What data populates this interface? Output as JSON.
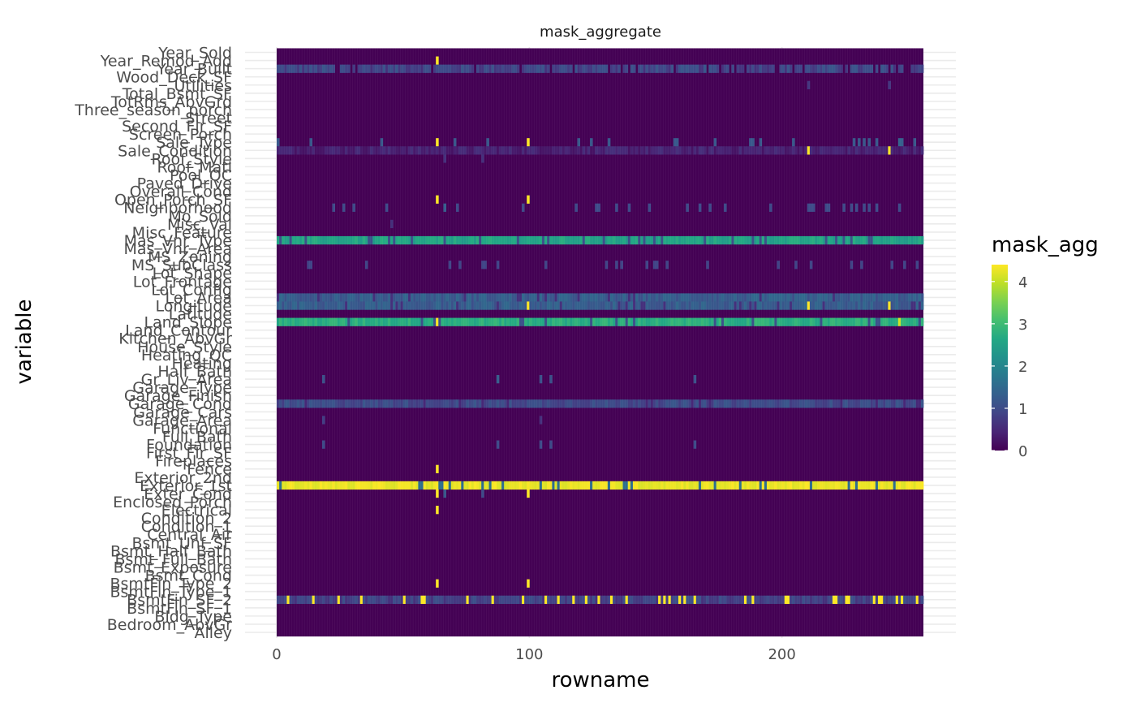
{
  "chart_data": {
    "type": "heatmap",
    "title": "mask_aggregate",
    "xlabel": "rowname",
    "ylabel": "variable",
    "x_range": [
      0,
      256
    ],
    "x_ticks": [
      0,
      100,
      200
    ],
    "x_tick_labels": [
      "0",
      "100",
      "200"
    ],
    "grid": true,
    "legend": {
      "title": "mask_agg",
      "placement": "right",
      "ticks": [
        0,
        1,
        2,
        3,
        4
      ],
      "tick_labels": [
        "0",
        "1",
        "2",
        "3",
        "4"
      ],
      "range": [
        0,
        4.4
      ],
      "colormap": "viridis"
    },
    "variables": [
      "Year_Sold",
      "Year_Remod_Add",
      "Year_Built",
      "Wood_Deck_SF",
      "Utilities",
      "Total_Bsmt_SF",
      "TotRms_AbvGrd",
      "Three_season_porch",
      "Street",
      "Second_Flr_SF",
      "Screen_Porch",
      "Sale_Type",
      "Sale_Condition",
      "Roof_Style",
      "Roof_Matl",
      "Pool_QC",
      "Paved_Drive",
      "Overall_Cond",
      "Open_Porch_SF",
      "Neighborhood",
      "Mo_Sold",
      "Misc_Val",
      "Misc_Feature",
      "Mas_Vnr_Type",
      "Mas_Vnr_Area",
      "MS_Zoning",
      "MS_SubClass",
      "Lot_Shape",
      "Lot_Frontage",
      "Lot_Config",
      "Lot_Area",
      "Longitude",
      "Latitude",
      "Land_Slope",
      "Land_Contour",
      "Kitchen_AbvGr",
      "House_Style",
      "Heating_QC",
      "Heating",
      "Half_Bath",
      "Gr_Liv_Area",
      "Garage_Type",
      "Garage_Finish",
      "Garage_Cond",
      "Garage_Cars",
      "Garage_Area",
      "Functional",
      "Full_Bath",
      "Foundation",
      "First_Flr_SF",
      "Fireplaces",
      "Fence",
      "Exterior_2nd",
      "Exterior_1st",
      "Exter_Cond",
      "Enclosed_Porch",
      "Electrical",
      "Condition_2",
      "Condition_1",
      "Central_Air",
      "Bsmt_Unf_SF",
      "Bsmt_Half_Bath",
      "Bsmt_Full_Bath",
      "Bsmt_Exposure",
      "Bsmt_Cond",
      "BsmtFin_Type_2",
      "BsmtFin_Type_1",
      "BsmtFin_SF_2",
      "BsmtFin_SF_1",
      "Bldg_Type",
      "Bedroom_AbvGr",
      "Alley"
    ],
    "rows": 256,
    "default_value": 0,
    "row_profiles": [
      {
        "variable": "Year_Remod_Add",
        "cells": [
          [
            63,
            4.4
          ]
        ]
      },
      {
        "variable": "Year_Built",
        "base": 0.9,
        "jitter": [
          0.6,
          1.2
        ],
        "speckle_dark": 0.12
      },
      {
        "variable": "Utilities",
        "cells": [
          [
            210,
            0.7
          ],
          [
            242,
            0.7
          ]
        ]
      },
      {
        "variable": "Sale_Type",
        "base": 0.0,
        "speckle": 0.1,
        "speckle_value": 1.2,
        "cells": [
          [
            63,
            4.4
          ],
          [
            99,
            4.4
          ],
          [
            246,
            1.4
          ],
          [
            247,
            1.3
          ]
        ]
      },
      {
        "variable": "Sale_Condition",
        "base": 0.35,
        "jitter": [
          0.2,
          0.6
        ],
        "cells": [
          [
            210,
            4.4
          ],
          [
            242,
            4.4
          ]
        ]
      },
      {
        "variable": "Roof_Style",
        "cells": [
          [
            66,
            0.6
          ],
          [
            81,
            0.6
          ]
        ]
      },
      {
        "variable": "Open_Porch_SF",
        "cells": [
          [
            63,
            4.4
          ],
          [
            99,
            4.4
          ]
        ]
      },
      {
        "variable": "Neighborhood",
        "base": 0.0,
        "speckle": 0.08,
        "speckle_value": 1.0,
        "cells": [
          [
            66,
            1.3
          ]
        ]
      },
      {
        "variable": "Misc_Val",
        "cells": [
          [
            45,
            0.6
          ]
        ]
      },
      {
        "variable": "Mas_Vnr_Type",
        "base": 2.55,
        "jitter": [
          2.35,
          2.75
        ],
        "speckle_dark": 0.1,
        "dark_value": 1.1
      },
      {
        "variable": "MS_SubClass",
        "base": 0.0,
        "speckle": 0.1,
        "speckle_value": 0.9
      },
      {
        "variable": "Lot_Area",
        "base": 1.3,
        "jitter": [
          1.05,
          1.5
        ],
        "speckle_dark": 0.08,
        "dark_value": 0.6
      },
      {
        "variable": "Longitude",
        "base": 1.3,
        "jitter": [
          1.05,
          1.5
        ],
        "speckle_dark": 0.08,
        "dark_value": 0.6,
        "cells": [
          [
            99,
            4.4
          ],
          [
            210,
            4.4
          ],
          [
            242,
            4.4
          ]
        ]
      },
      {
        "variable": "Land_Slope",
        "base": 2.75,
        "jitter": [
          2.55,
          2.95
        ],
        "speckle_dark": 0.1,
        "dark_value": 1.1,
        "cells": [
          [
            63,
            4.4
          ],
          [
            246,
            4.1
          ]
        ]
      },
      {
        "variable": "Gr_Liv_Area",
        "cells": [
          [
            18,
            1.1
          ],
          [
            87,
            1.3
          ],
          [
            104,
            1.1
          ],
          [
            108,
            1.1
          ],
          [
            165,
            1.1
          ]
        ]
      },
      {
        "variable": "Garage_Cond",
        "base": 0.95,
        "jitter": [
          0.75,
          1.2
        ],
        "speckle_dark": 0.05,
        "dark_value": 0.5
      },
      {
        "variable": "Garage_Area",
        "cells": [
          [
            18,
            0.8
          ],
          [
            104,
            0.6
          ]
        ]
      },
      {
        "variable": "Foundation",
        "cells": [
          [
            18,
            1.0
          ],
          [
            87,
            1.0
          ],
          [
            104,
            1.0
          ],
          [
            108,
            1.0
          ],
          [
            165,
            1.0
          ]
        ]
      },
      {
        "variable": "Fence",
        "cells": [
          [
            63,
            4.4
          ]
        ]
      },
      {
        "variable": "Exterior_1st",
        "base": 4.3,
        "jitter": [
          4.15,
          4.4
        ],
        "speckle_dark": 0.1,
        "dark_value": 1.6
      },
      {
        "variable": "Exter_Cond",
        "cells": [
          [
            63,
            4.4
          ],
          [
            66,
            1.2
          ],
          [
            81,
            1.0
          ],
          [
            99,
            4.4
          ]
        ]
      },
      {
        "variable": "Electrical",
        "cells": [
          [
            63,
            4.4
          ]
        ]
      },
      {
        "variable": "BsmtFin_Type_2",
        "cells": [
          [
            63,
            4.4
          ],
          [
            99,
            4.4
          ]
        ]
      },
      {
        "variable": "BsmtFin_SF_2",
        "base": 0.8,
        "jitter": [
          0.6,
          1.1
        ],
        "bright_cells": [
          4,
          14,
          24,
          33,
          50,
          57,
          58,
          75,
          85,
          97,
          106,
          111,
          117,
          122,
          127,
          132,
          138,
          151,
          153,
          155,
          159,
          161,
          165,
          185,
          188,
          201,
          202,
          220,
          221,
          225,
          226,
          236,
          238,
          239,
          245,
          247,
          253
        ],
        "bright_value": 4.4
      }
    ]
  }
}
